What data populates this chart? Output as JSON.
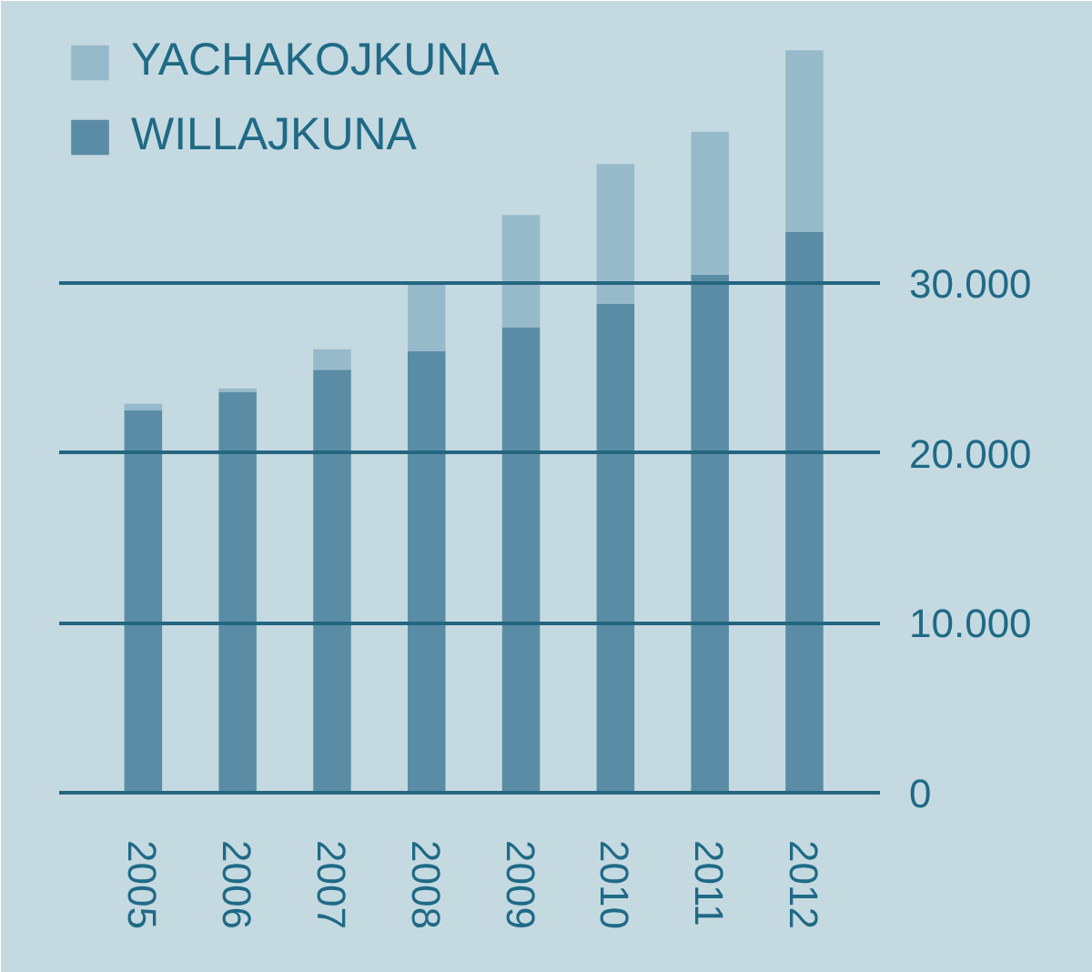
{
  "chart_data": {
    "type": "bar",
    "stacked": true,
    "categories": [
      "2005",
      "2006",
      "2007",
      "2008",
      "2009",
      "2010",
      "2011",
      "2012"
    ],
    "series": [
      {
        "name": "WILLAJKUNA",
        "color": "#5a8ca5",
        "values": [
          22500,
          23600,
          24900,
          26000,
          27400,
          28800,
          30500,
          33000
        ]
      },
      {
        "name": "YACHAKOJKUNA",
        "color": "#97bacb",
        "values": [
          400,
          200,
          1200,
          4000,
          6600,
          8200,
          8400,
          10700
        ]
      }
    ],
    "ylim": [
      0,
      45000
    ],
    "yticks": [
      0,
      {
        "value": 10000,
        "label": "10.000"
      },
      {
        "value": 20000,
        "label": "20.000"
      },
      {
        "value": 30000,
        "label": "30.000"
      }
    ],
    "grid": "y",
    "legend": "top left"
  }
}
